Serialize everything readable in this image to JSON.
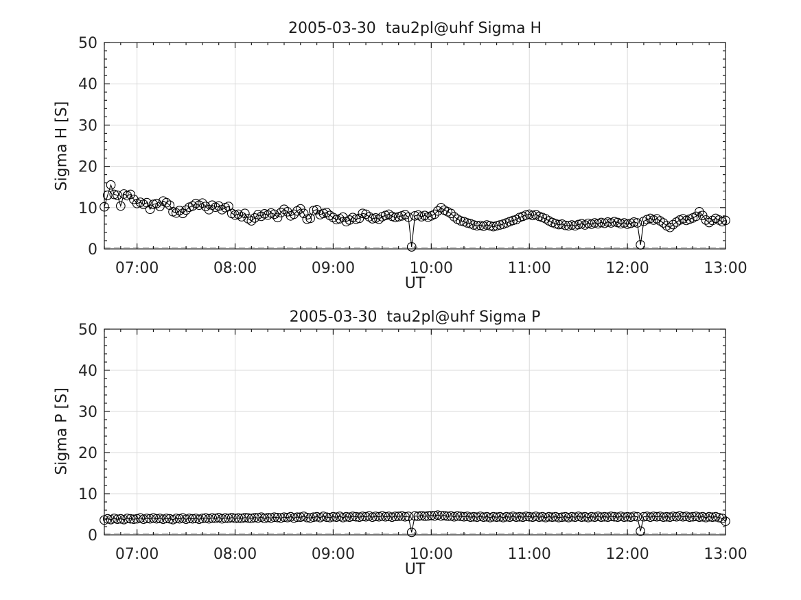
{
  "figure": {
    "background": "#ffffff"
  },
  "chart_data": [
    {
      "type": "line",
      "title": "2005-03-30  tau2pl@uhf Sigma H",
      "xlabel": "UT",
      "ylabel": "Sigma H [S]",
      "ylim": [
        0,
        50
      ],
      "ytick_values": [
        0,
        10,
        20,
        30,
        40,
        50
      ],
      "ytick_labels": [
        "0",
        "10",
        "20",
        "30",
        "40",
        "50"
      ],
      "yminor_step": 2,
      "x_range_minutes": [
        400,
        780
      ],
      "x_step_minutes": 2,
      "xtick_minutes": [
        420,
        480,
        540,
        600,
        660,
        720,
        780
      ],
      "xtick_labels": [
        "07:00",
        "08:00",
        "09:00",
        "10:00",
        "11:00",
        "12:00",
        "13:00"
      ],
      "xminor_step_min": 10,
      "grid": true,
      "legend": null,
      "marker": "open-circle",
      "colors": {
        "series": "#000000",
        "grid": "#d9d9d9",
        "axis": "#1a1a1a",
        "tick_text": "#262626",
        "floor_dash": "#b8b8b8"
      },
      "floor_dash_y": 0.35,
      "values": [
        10.2,
        13.0,
        15.5,
        13.2,
        13.0,
        10.4,
        13.3,
        12.9,
        13.2,
        12.0,
        11.0,
        11.3,
        10.8,
        11.2,
        9.6,
        10.8,
        11.0,
        10.3,
        11.6,
        11.2,
        10.6,
        9.0,
        8.7,
        9.3,
        8.6,
        9.4,
        10.1,
        10.4,
        11.0,
        10.6,
        11.1,
        10.3,
        9.5,
        10.6,
        10.1,
        10.4,
        9.5,
        10.0,
        10.3,
        8.6,
        8.2,
        8.4,
        7.8,
        8.6,
        7.3,
        6.8,
        7.5,
        8.3,
        7.9,
        8.5,
        8.2,
        8.7,
        8.4,
        7.6,
        8.8,
        9.6,
        9.0,
        8.0,
        8.4,
        9.2,
        9.7,
        8.6,
        7.2,
        7.4,
        9.3,
        9.5,
        8.3,
        8.6,
        8.8,
        8.1,
        7.6,
        7.1,
        7.3,
        7.7,
        6.6,
        7.0,
        7.6,
        7.2,
        7.4,
        8.6,
        8.4,
        7.8,
        7.3,
        7.5,
        7.2,
        7.8,
        8.1,
        8.4,
        7.9,
        7.6,
        7.8,
        8.0,
        8.3,
        7.7,
        0.5,
        8.0,
        8.2,
        7.8,
        8.1,
        7.7,
        8.0,
        8.4,
        9.2,
        10.0,
        9.4,
        9.0,
        8.6,
        7.8,
        7.2,
        6.8,
        6.6,
        6.3,
        6.1,
        5.8,
        5.6,
        5.7,
        5.5,
        5.8,
        5.6,
        5.4,
        5.6,
        5.8,
        6.0,
        6.3,
        6.6,
        6.9,
        7.1,
        7.6,
        7.9,
        8.2,
        8.4,
        8.1,
        8.3,
        7.9,
        7.6,
        7.3,
        6.8,
        6.4,
        6.1,
        5.9,
        6.0,
        5.7,
        5.6,
        5.8,
        5.6,
        5.9,
        6.1,
        5.8,
        6.2,
        6.0,
        6.3,
        6.1,
        6.4,
        6.2,
        6.5,
        6.3,
        6.6,
        6.4,
        6.1,
        6.3,
        6.0,
        6.2,
        6.5,
        6.3,
        1.0,
        6.7,
        7.1,
        7.4,
        7.0,
        7.3,
        6.8,
        6.3,
        5.6,
        5.2,
        5.9,
        6.5,
        7.0,
        7.3,
        6.9,
        7.2,
        7.5,
        7.9,
        9.0,
        8.1,
        7.0,
        6.4,
        6.9,
        7.4,
        7.0,
        6.6,
        6.9
      ]
    },
    {
      "type": "line",
      "title": "2005-03-30  tau2pl@uhf Sigma P",
      "xlabel": "UT",
      "ylabel": "Sigma P [S]",
      "ylim": [
        0,
        50
      ],
      "ytick_values": [
        0,
        10,
        20,
        30,
        40,
        50
      ],
      "ytick_labels": [
        "0",
        "10",
        "20",
        "30",
        "40",
        "50"
      ],
      "yminor_step": 2,
      "x_range_minutes": [
        400,
        780
      ],
      "x_step_minutes": 2,
      "xtick_minutes": [
        420,
        480,
        540,
        600,
        660,
        720,
        780
      ],
      "xtick_labels": [
        "07:00",
        "08:00",
        "09:00",
        "10:00",
        "11:00",
        "12:00",
        "13:00"
      ],
      "xminor_step_min": 10,
      "grid": true,
      "legend": null,
      "marker": "open-circle",
      "colors": {
        "series": "#000000",
        "grid": "#d9d9d9",
        "axis": "#1a1a1a",
        "tick_text": "#262626",
        "floor_dash": "#b8b8b8"
      },
      "floor_dash_y": 0.35,
      "values": [
        3.6,
        3.9,
        3.7,
        4.0,
        3.8,
        3.9,
        3.7,
        4.0,
        3.9,
        3.8,
        3.9,
        4.1,
        3.8,
        4.0,
        3.9,
        4.1,
        3.9,
        4.0,
        3.8,
        4.0,
        3.9,
        3.7,
        4.0,
        3.9,
        4.1,
        3.8,
        4.0,
        3.9,
        4.0,
        3.8,
        4.0,
        4.1,
        3.9,
        4.1,
        4.0,
        4.2,
        3.9,
        4.1,
        4.0,
        4.2,
        4.0,
        4.1,
        4.0,
        4.2,
        4.1,
        4.0,
        4.2,
        4.1,
        4.3,
        4.0,
        4.2,
        4.1,
        4.3,
        4.2,
        4.1,
        4.3,
        4.2,
        4.4,
        4.1,
        4.3,
        4.3,
        4.5,
        4.2,
        4.1,
        4.3,
        4.4,
        4.2,
        4.5,
        4.3,
        4.2,
        4.4,
        4.3,
        4.5,
        4.2,
        4.4,
        4.3,
        4.5,
        4.4,
        4.3,
        4.5,
        4.4,
        4.6,
        4.3,
        4.5,
        4.4,
        4.6,
        4.4,
        4.5,
        4.3,
        4.5,
        4.5,
        4.6,
        4.4,
        4.5,
        0.6,
        4.6,
        4.5,
        4.7,
        4.5,
        4.6,
        4.7,
        4.6,
        4.8,
        4.6,
        4.7,
        4.5,
        4.6,
        4.4,
        4.6,
        4.5,
        4.4,
        4.5,
        4.3,
        4.4,
        4.3,
        4.5,
        4.3,
        4.4,
        4.2,
        4.4,
        4.3,
        4.4,
        4.2,
        4.4,
        4.3,
        4.5,
        4.3,
        4.4,
        4.3,
        4.5,
        4.4,
        4.3,
        4.5,
        4.3,
        4.4,
        4.2,
        4.4,
        4.3,
        4.4,
        4.2,
        4.3,
        4.4,
        4.2,
        4.4,
        4.3,
        4.5,
        4.3,
        4.4,
        4.2,
        4.4,
        4.3,
        4.5,
        4.3,
        4.4,
        4.3,
        4.5,
        4.4,
        4.3,
        4.5,
        4.3,
        4.4,
        4.3,
        4.5,
        4.4,
        0.9,
        4.4,
        4.5,
        4.3,
        4.5,
        4.4,
        4.5,
        4.3,
        4.4,
        4.3,
        4.5,
        4.4,
        4.6,
        4.4,
        4.5,
        4.3,
        4.4,
        4.5,
        4.3,
        4.4,
        4.2,
        4.4,
        4.3,
        4.4,
        4.2,
        4.0,
        3.3
      ]
    }
  ]
}
